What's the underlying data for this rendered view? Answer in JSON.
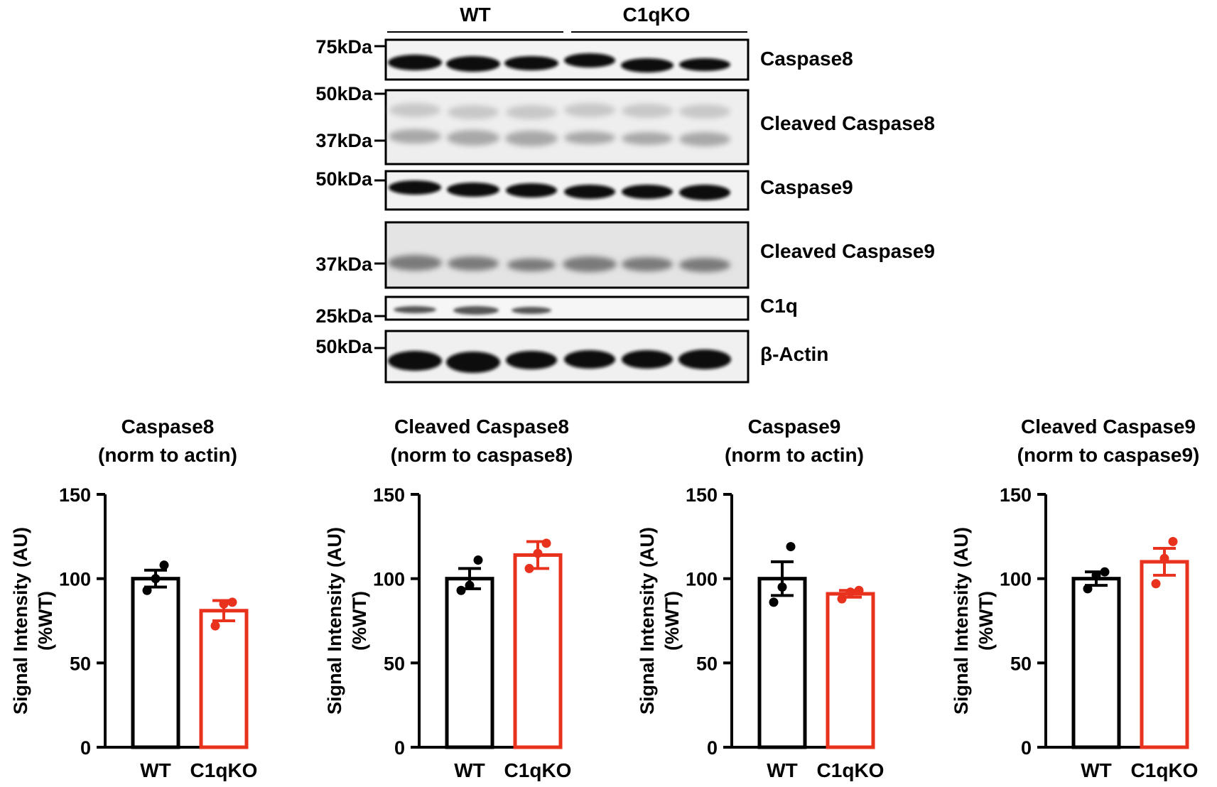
{
  "blot": {
    "groups": [
      "WT",
      "C1qKO"
    ],
    "lanes_per_group": 3,
    "panels": [
      {
        "label": "Caspase8",
        "markers": [
          "75kDa"
        ]
      },
      {
        "label": "Cleaved Caspase8",
        "markers": [
          "50kDa",
          "37kDa"
        ]
      },
      {
        "label": "Caspase9",
        "markers": [
          "50kDa"
        ]
      },
      {
        "label": "Cleaved Caspase9",
        "markers": [
          "37kDa"
        ]
      },
      {
        "label": "C1q",
        "markers": [
          "25kDa"
        ]
      },
      {
        "label": "β-Actin",
        "markers": [
          "50kDa"
        ]
      }
    ]
  },
  "colors": {
    "WT": "#000000",
    "C1qKO": "#e8321e"
  },
  "chart_data": [
    {
      "type": "bar",
      "title": [
        "Caspase8",
        "(norm to actin)"
      ],
      "ylabel": [
        "Signal Intensity (AU)",
        "(%WT)"
      ],
      "categories": [
        "WT",
        "C1qKO"
      ],
      "values": [
        100,
        81
      ],
      "sem": [
        5,
        6
      ],
      "points": [
        [
          93,
          100,
          108
        ],
        [
          72,
          85,
          86
        ]
      ],
      "ylim": [
        0,
        150
      ],
      "yticks": [
        0,
        50,
        100,
        150
      ]
    },
    {
      "type": "bar",
      "title": [
        "Cleaved Caspase8",
        "(norm to caspase8)"
      ],
      "ylabel": [
        "Signal Intensity (AU)",
        "(%WT)"
      ],
      "categories": [
        "WT",
        "C1qKO"
      ],
      "values": [
        100,
        114
      ],
      "sem": [
        6,
        8
      ],
      "points": [
        [
          93,
          96,
          111
        ],
        [
          106,
          115,
          121
        ]
      ],
      "ylim": [
        0,
        150
      ],
      "yticks": [
        0,
        50,
        100,
        150
      ]
    },
    {
      "type": "bar",
      "title": [
        "Caspase9",
        "(norm to actin)"
      ],
      "ylabel": [
        "Signal Intensity (AU)",
        "(%WT)"
      ],
      "categories": [
        "WT",
        "C1qKO"
      ],
      "values": [
        100,
        91
      ],
      "sem": [
        10,
        2
      ],
      "points": [
        [
          86,
          95,
          119
        ],
        [
          88,
          92,
          93
        ]
      ],
      "ylim": [
        0,
        150
      ],
      "yticks": [
        0,
        50,
        100,
        150
      ]
    },
    {
      "type": "bar",
      "title": [
        "Cleaved Caspase9",
        "(norm to caspase9)"
      ],
      "ylabel": [
        "Signal Intensity (AU)",
        "(%WT)"
      ],
      "categories": [
        "WT",
        "C1qKO"
      ],
      "values": [
        100,
        110
      ],
      "sem": [
        4,
        8
      ],
      "points": [
        [
          94,
          102,
          104
        ],
        [
          97,
          112,
          122
        ]
      ],
      "ylim": [
        0,
        150
      ],
      "yticks": [
        0,
        50,
        100,
        150
      ]
    }
  ]
}
